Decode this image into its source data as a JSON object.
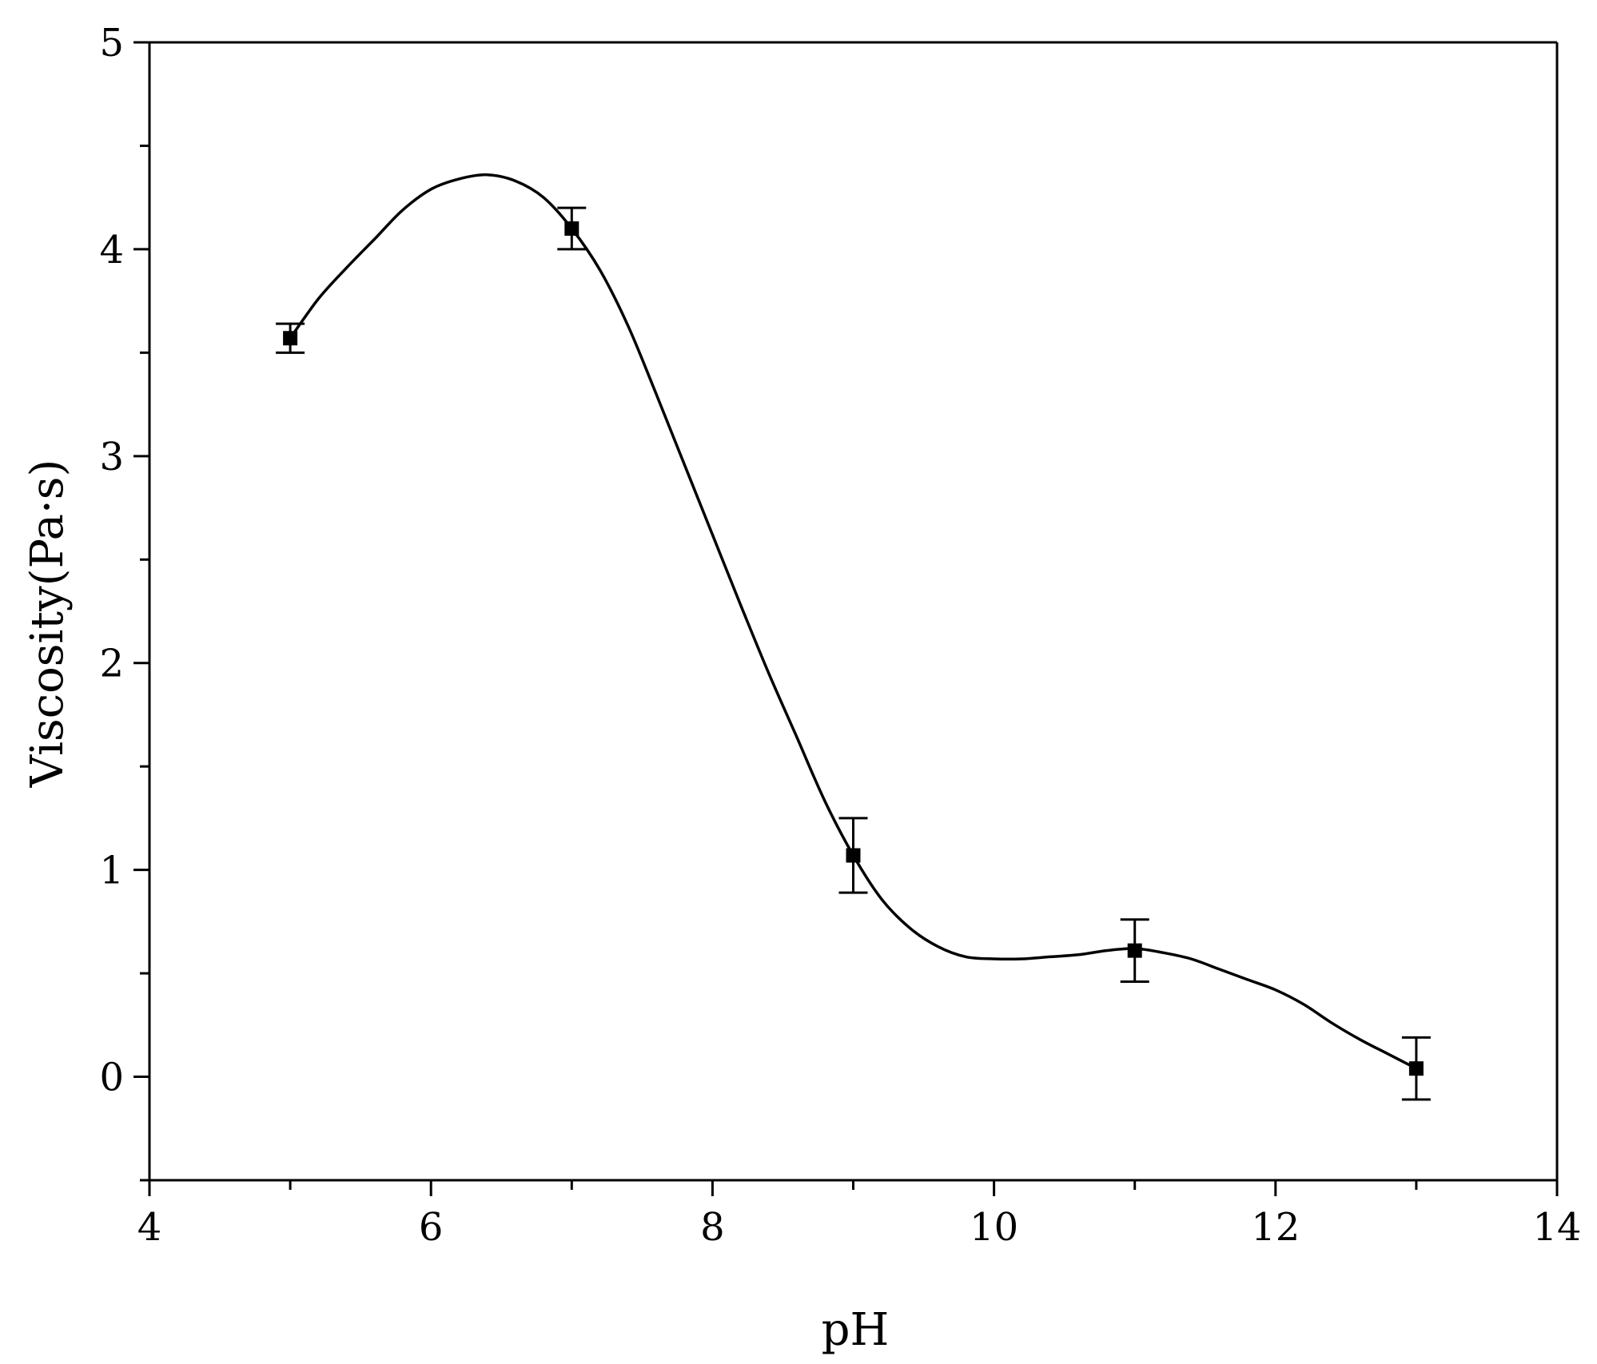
{
  "chart_data": {
    "type": "line",
    "title": "",
    "xlabel": "pH",
    "ylabel": "Viscosity(Pa·s)",
    "xlim": [
      4,
      14
    ],
    "ylim": [
      -0.5,
      5
    ],
    "x_major_ticks": [
      4,
      6,
      8,
      10,
      12,
      14
    ],
    "x_minor_ticks": [
      5,
      7,
      9,
      11,
      13
    ],
    "x_tick_labels": [
      "4",
      "6",
      "8",
      "10",
      "12",
      "14"
    ],
    "y_major_ticks": [
      0,
      1,
      2,
      3,
      4,
      5
    ],
    "y_minor_ticks": [
      -0.5,
      0.5,
      1.5,
      2.5,
      3.5,
      4.5
    ],
    "y_tick_labels": [
      "0",
      "1",
      "2",
      "3",
      "4",
      "5"
    ],
    "grid": false,
    "legend": "none",
    "series": [
      {
        "marker": "square",
        "color": "#000000",
        "points": [
          {
            "x": 5,
            "y": 3.57,
            "err": 0.07
          },
          {
            "x": 7,
            "y": 4.1,
            "err": 0.1
          },
          {
            "x": 9,
            "y": 1.07,
            "err": 0.18
          },
          {
            "x": 11,
            "y": 0.61,
            "err": 0.15
          },
          {
            "x": 13,
            "y": 0.04,
            "err": 0.15
          }
        ]
      }
    ],
    "fit_curve": {
      "color": "#000000",
      "x": [
        5.0,
        5.2,
        5.4,
        5.6,
        5.8,
        6.0,
        6.2,
        6.4,
        6.6,
        6.8,
        7.0,
        7.2,
        7.4,
        7.6,
        7.8,
        8.0,
        8.2,
        8.4,
        8.6,
        8.8,
        9.0,
        9.2,
        9.4,
        9.6,
        9.8,
        10.0,
        10.2,
        10.4,
        10.6,
        10.8,
        11.0,
        11.2,
        11.4,
        11.6,
        11.8,
        12.0,
        12.2,
        12.4,
        12.6,
        12.8,
        13.0
      ],
      "y": [
        3.57,
        3.76,
        3.91,
        4.05,
        4.19,
        4.29,
        4.34,
        4.36,
        4.33,
        4.25,
        4.1,
        3.9,
        3.63,
        3.3,
        2.96,
        2.62,
        2.28,
        1.95,
        1.64,
        1.33,
        1.07,
        0.86,
        0.72,
        0.63,
        0.58,
        0.57,
        0.57,
        0.58,
        0.59,
        0.61,
        0.62,
        0.6,
        0.57,
        0.52,
        0.47,
        0.42,
        0.35,
        0.26,
        0.18,
        0.11,
        0.04
      ]
    }
  }
}
